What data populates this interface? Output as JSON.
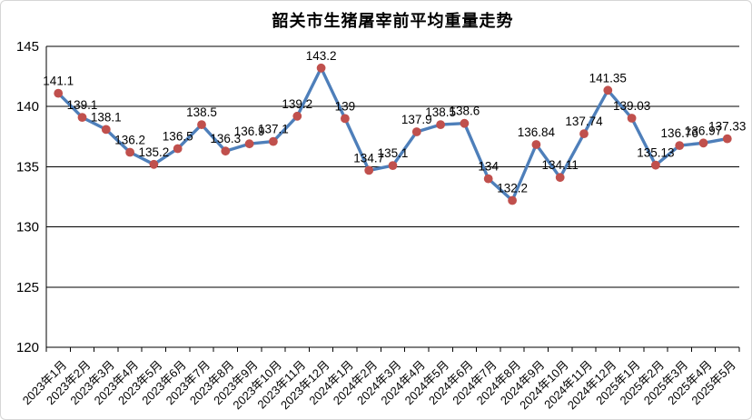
{
  "window": {
    "background": "#ffffff",
    "frame_border_color": "#d6d6d6"
  },
  "chart_data": {
    "type": "line",
    "title": "韶关市生猪屠宰前平均重量走势",
    "xlabel": "",
    "ylabel": "",
    "ylim": [
      120,
      145
    ],
    "ytick_step": 5,
    "ytick_labels": [
      "120",
      "125",
      "130",
      "135",
      "140",
      "145"
    ],
    "grid": true,
    "legend": "none",
    "x_label_rotation_deg": -45,
    "categories": [
      "2023年1月",
      "2023年2月",
      "2023年3月",
      "2023年4月",
      "2023年5月",
      "2023年6月",
      "2023年7月",
      "2023年8月",
      "2023年9月",
      "2023年10月",
      "2023年11月",
      "2023年12月",
      "2024年1月",
      "2024年2月",
      "2024年3月",
      "2024年4月",
      "2024年5月",
      "2024年6月",
      "2024年7月",
      "2024年8月",
      "2024年9月",
      "2024年10月",
      "2024年11月",
      "2024年12月",
      "2025年1月",
      "2025年2月",
      "2025年3月",
      "2025年4月",
      "2025年5月"
    ],
    "series": [
      {
        "name": "屠宰前平均重量",
        "values": [
          141.1,
          139.1,
          138.1,
          136.2,
          135.2,
          136.5,
          138.5,
          136.3,
          136.9,
          137.1,
          139.2,
          143.2,
          139,
          134.7,
          135.1,
          137.9,
          138.5,
          138.6,
          134,
          132.2,
          136.84,
          134.11,
          137.74,
          141.35,
          139.03,
          135.13,
          136.76,
          136.97,
          137.33
        ],
        "data_labels": [
          "141.1",
          "139.1",
          "138.1",
          "136.2",
          "135.2",
          "136.5",
          "138.5",
          "136.3",
          "136.9",
          "137.1",
          "139.2",
          "143.2",
          "139",
          "134.7",
          "135.1",
          "137.9",
          "138.5",
          "138.6",
          "134",
          "132.2",
          "136.84",
          "134.11",
          "137.74",
          "141.35",
          "139.03",
          "135.13",
          "136.76",
          "136.97",
          "137.33"
        ],
        "line_color": "#4E7FBA",
        "marker_color": "#C0504D",
        "marker_shape": "circle"
      }
    ],
    "colors": {
      "axis": "#000000",
      "grid": "#000000",
      "text": "#000000"
    }
  }
}
